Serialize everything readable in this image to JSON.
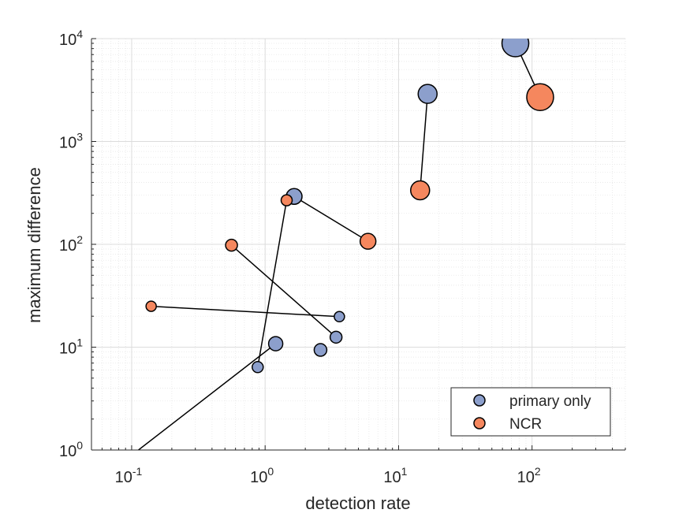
{
  "chart_data": {
    "type": "scatter",
    "xlabel": "detection rate",
    "ylabel": "maximum difference",
    "xscale": "log",
    "yscale": "log",
    "xlim": [
      0.05,
      500
    ],
    "ylim": [
      1,
      10000
    ],
    "grid": true,
    "minor_grid": true,
    "x_ticks": [
      {
        "base": "10",
        "exp": "-1",
        "value": 0.1
      },
      {
        "base": "10",
        "exp": "0",
        "value": 1
      },
      {
        "base": "10",
        "exp": "1",
        "value": 10
      },
      {
        "base": "10",
        "exp": "2",
        "value": 100
      }
    ],
    "y_ticks": [
      {
        "base": "10",
        "exp": "0",
        "value": 1
      },
      {
        "base": "10",
        "exp": "1",
        "value": 10
      },
      {
        "base": "10",
        "exp": "2",
        "value": 100
      },
      {
        "base": "10",
        "exp": "3",
        "value": 1000
      },
      {
        "base": "10",
        "exp": "4",
        "value": 10000
      }
    ],
    "legend": {
      "location": "bottom-right",
      "entries": [
        {
          "name": "primary only",
          "color": "#8c9fcc"
        },
        {
          "name": "NCR",
          "color": "#f5875e"
        }
      ]
    },
    "series": [
      {
        "name": "primary only",
        "color": "#8c9fcc"
      },
      {
        "name": "NCR",
        "color": "#f5875e"
      }
    ],
    "pairs": [
      {
        "primary": {
          "x": 75,
          "y": 9000,
          "size": 17
        },
        "ncr": {
          "x": 115,
          "y": 2700,
          "size": 17
        }
      },
      {
        "primary": {
          "x": 16.5,
          "y": 2900,
          "size": 12
        },
        "ncr": {
          "x": 14.5,
          "y": 335,
          "size": 12
        }
      },
      {
        "primary": {
          "x": 1.65,
          "y": 292,
          "size": 10
        },
        "ncr": {
          "x": 5.9,
          "y": 107,
          "size": 10
        }
      },
      {
        "primary": {
          "x": 0.88,
          "y": 6.4,
          "size": 7
        },
        "ncr": {
          "x": 1.45,
          "y": 268,
          "size": 7
        }
      },
      {
        "primary": {
          "x": 3.4,
          "y": 12.5,
          "size": 7.5
        },
        "ncr": {
          "x": 0.56,
          "y": 98,
          "size": 7.5
        }
      },
      {
        "primary": {
          "x": 3.6,
          "y": 19.8,
          "size": 6.5
        },
        "ncr": {
          "x": 0.14,
          "y": 25,
          "size": 6.5
        }
      },
      {
        "primary": {
          "x": 1.2,
          "y": 10.8,
          "size": 9
        },
        "ncr": {
          "x": 0.09,
          "y": 0.8,
          "size": 9
        }
      },
      {
        "primary": {
          "x": 2.6,
          "y": 9.4,
          "size": 8
        },
        "ncr": null
      }
    ]
  }
}
